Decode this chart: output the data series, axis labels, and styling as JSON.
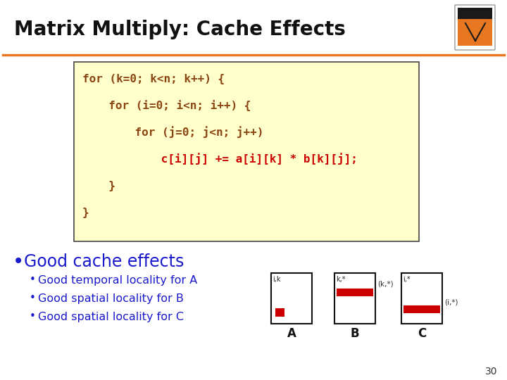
{
  "title": "Matrix Multiply: Cache Effects",
  "background_color": "#ffffff",
  "border_color": "#e87722",
  "code_bg": "#ffffcc",
  "code_lines": [
    "for (k=0; k<n; k++) {",
    "  for (i=0; i<n; i++) {",
    "    for (j=0; j<n; j++)",
    "      c[i][j] += a[i][k] * b[k][j];",
    "  }",
    "}"
  ],
  "code_colors": [
    "#8B4513",
    "#8B4513",
    "#8B4513",
    "#cc0000",
    "#8B4513",
    "#8B4513"
  ],
  "bullet_color": "#1a1acc",
  "bullet_main": "Good cache effects",
  "bullets": [
    "Good temporal locality for A",
    "Good spatial locality for B",
    "Good spatial locality for C"
  ],
  "matrix_labels": [
    "A",
    "B",
    "C"
  ],
  "matrix_sublabels": [
    "i,k",
    "k,*",
    "i,*"
  ],
  "page_number": "30"
}
